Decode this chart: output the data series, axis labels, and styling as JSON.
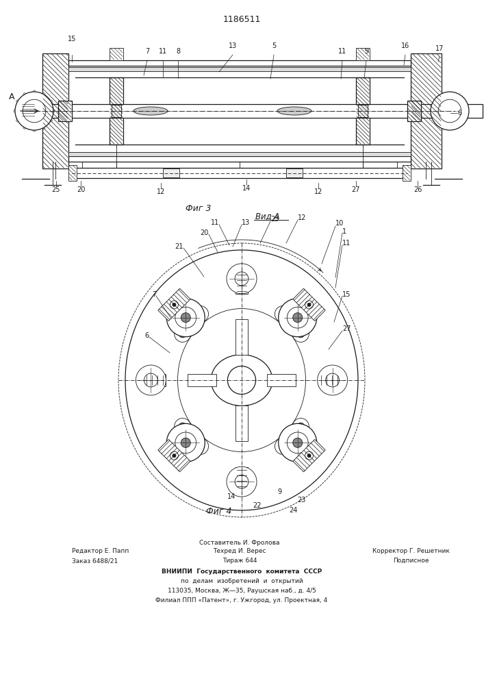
{
  "patent_number": "1186511",
  "fig3_label": "Фиг 3",
  "fig4_label": "Фиг 4",
  "view_a_label": "Вид A",
  "footer_line1_left": "Редактор Е. Папп",
  "footer_line2_left": "Заказ 6488/21",
  "footer_line1_center": "Составитель И. Фролова",
  "footer_line2_center": "Техред И. Верес",
  "footer_line3_center": "Тираж 644",
  "footer_line2_right": "Корректор Г. Решетник",
  "footer_line3_right": "Подписное",
  "footer_vniiipi1": "ВНИИПИ  Государственного  комитета  СССР",
  "footer_vniiipi2": "по  делам  изобретений  и  открытий",
  "footer_vniiipi3": "113035, Москва, Ж—35, Раушская наб., д. 4/5",
  "footer_vniiipi4": "Филиал ППП «Патент», г. Ужгород, ул. Проектная, 4",
  "bg_color": "#ffffff",
  "line_color": "#1a1a1a"
}
